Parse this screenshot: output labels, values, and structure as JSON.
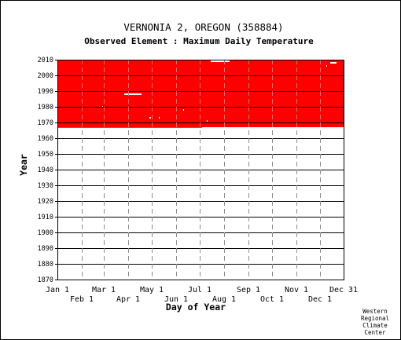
{
  "chart_data": {
    "type": "heatmap",
    "title": "VERNONIA 2, OREGON   (358884)",
    "subtitle": "Observed Element : Maximum Daily Temperature",
    "xlabel": "Day of Year",
    "ylabel": "Year",
    "x_range": [
      1,
      365
    ],
    "ylim": [
      1870,
      2010
    ],
    "x_ticks_upper": [
      {
        "label": "Jan 1",
        "day": 1
      },
      {
        "label": "Mar 1",
        "day": 60
      },
      {
        "label": "May 1",
        "day": 121
      },
      {
        "label": "Jul 1",
        "day": 182
      },
      {
        "label": "Sep 1",
        "day": 244
      },
      {
        "label": "Nov 1",
        "day": 305
      },
      {
        "label": "Dec 31",
        "day": 365
      }
    ],
    "x_ticks_lower": [
      {
        "label": "Feb 1",
        "day": 32
      },
      {
        "label": "Apr 1",
        "day": 91
      },
      {
        "label": "Jun 1",
        "day": 152
      },
      {
        "label": "Aug 1",
        "day": 213
      },
      {
        "label": "Oct 1",
        "day": 274
      },
      {
        "label": "Dec 1",
        "day": 335
      }
    ],
    "y_ticks": [
      1870,
      1880,
      1890,
      1900,
      1910,
      1920,
      1930,
      1940,
      1950,
      1960,
      1970,
      1980,
      1990,
      2000,
      2010
    ],
    "grid": true,
    "fill_color": "#ff0000",
    "data_coverage": [
      {
        "from_day": 1,
        "to_day": 365,
        "from_year": 1967,
        "to_year": 2010
      },
      {
        "from_day": 1,
        "to_day": 185,
        "from_year": 1966.6,
        "to_year": 1967
      }
    ],
    "missing_segments": [
      {
        "from_day": 86,
        "to_day": 108,
        "year": 1988
      },
      {
        "from_day": 196,
        "to_day": 220,
        "year": 2009
      },
      {
        "from_day": 348,
        "to_day": 356,
        "year": 2008
      },
      {
        "from_day": 343,
        "to_day": 344,
        "year": 2006
      },
      {
        "from_day": 161,
        "to_day": 162,
        "year": 1978
      },
      {
        "from_day": 118,
        "to_day": 120,
        "year": 1973
      },
      {
        "from_day": 130,
        "to_day": 131,
        "year": 1973
      },
      {
        "from_day": 191,
        "to_day": 192,
        "year": 1971
      },
      {
        "from_day": 58,
        "to_day": 59,
        "year": 1980
      }
    ]
  },
  "credit": [
    "Western",
    "Regional",
    "Climate",
    "Center"
  ]
}
